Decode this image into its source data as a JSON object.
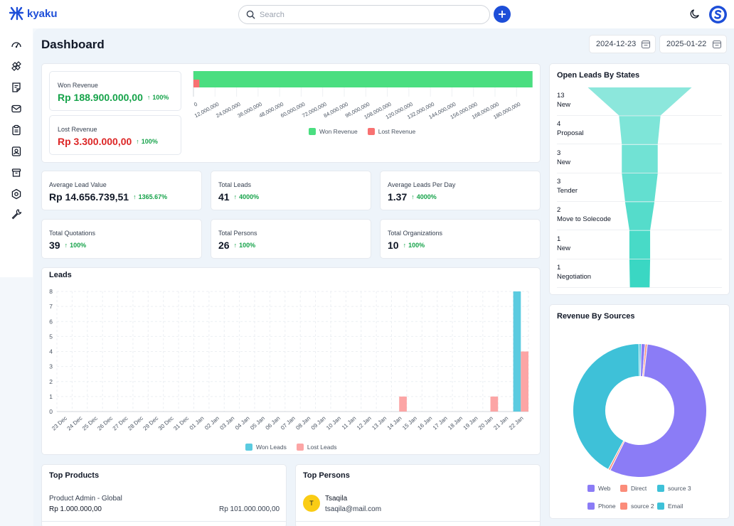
{
  "app": {
    "name": "kyaku"
  },
  "header": {
    "search_placeholder": "Search",
    "avatar_letter": "S"
  },
  "page": {
    "title": "Dashboard",
    "date_from": "2024-12-23",
    "date_to": "2025-01-22"
  },
  "revenue": {
    "won_label": "Won Revenue",
    "won_value": "Rp 188.900.000,00",
    "won_pct": "100%",
    "lost_label": "Lost Revenue",
    "lost_value": "Rp 3.300.000,00",
    "lost_pct": "100%",
    "chart": {
      "type": "bar",
      "orientation": "horizontal",
      "series": [
        {
          "name": "Won Revenue",
          "value": 188900000,
          "color": "#4ade80"
        },
        {
          "name": "Lost Revenue",
          "value": 3300000,
          "color": "#f87171"
        }
      ],
      "xlim": [
        0,
        189000000
      ],
      "ticks": [
        "0",
        "12,000,000",
        "24,000,000",
        "36,000,000",
        "48,000,000",
        "60,000,000",
        "72,000,000",
        "84,000,000",
        "96,000,000",
        "108,000,000",
        "120,000,000",
        "132,000,000",
        "144,000,000",
        "156,000,000",
        "168,000,000",
        "180,000,000"
      ],
      "legend_position": "bottom"
    }
  },
  "stats": [
    {
      "label": "Average Lead Value",
      "value": "Rp 14.656.739,51",
      "pct": "1365.67%"
    },
    {
      "label": "Total Leads",
      "value": "41",
      "pct": "4000%"
    },
    {
      "label": "Average Leads Per Day",
      "value": "1.37",
      "pct": "4000%"
    },
    {
      "label": "Total Quotations",
      "value": "39",
      "pct": "100%"
    },
    {
      "label": "Total Persons",
      "value": "26",
      "pct": "100%"
    },
    {
      "label": "Total Organizations",
      "value": "10",
      "pct": "100%"
    }
  ],
  "leads": {
    "title": "Leads",
    "legend": [
      "Won Leads",
      "Lost Leads"
    ]
  },
  "chart_data": [
    {
      "type": "bar",
      "title": "Leads",
      "categories": [
        "23 Dec",
        "24 Dec",
        "25 Dec",
        "26 Dec",
        "27 Dec",
        "28 Dec",
        "29 Dec",
        "30 Dec",
        "31 Dec",
        "01 Jan",
        "02 Jan",
        "03 Jan",
        "04 Jan",
        "05 Jan",
        "06 Jan",
        "07 Jan",
        "08 Jan",
        "09 Jan",
        "10 Jan",
        "11 Jan",
        "12 Jan",
        "13 Jan",
        "14 Jan",
        "15 Jan",
        "16 Jan",
        "17 Jan",
        "18 Jan",
        "19 Jan",
        "20 Jan",
        "21 Jan",
        "22 Jan"
      ],
      "series": [
        {
          "name": "Won Leads",
          "color": "#5bcbe0",
          "values": [
            0,
            0,
            0,
            0,
            0,
            0,
            0,
            0,
            0,
            0,
            0,
            0,
            0,
            0,
            0,
            0,
            0,
            0,
            0,
            0,
            0,
            0,
            0,
            0,
            0,
            0,
            0,
            0,
            0,
            0,
            8
          ]
        },
        {
          "name": "Lost Leads",
          "color": "#fca5a5",
          "values": [
            0,
            0,
            0,
            0,
            0,
            0,
            0,
            0,
            0,
            0,
            0,
            0,
            0,
            0,
            0,
            0,
            0,
            0,
            0,
            0,
            0,
            0,
            1,
            0,
            0,
            0,
            0,
            0,
            1,
            0,
            4
          ]
        }
      ],
      "ylim": [
        0,
        8
      ],
      "yticks": [
        0,
        1,
        2,
        3,
        4,
        5,
        6,
        7,
        8
      ],
      "grid": true,
      "legend_position": "bottom"
    },
    {
      "type": "pie",
      "title": "Revenue By Sources",
      "donut": true,
      "slices": [
        {
          "name": "Web",
          "value": 1.0,
          "color": "#8b7cf6"
        },
        {
          "name": "Direct",
          "value": 0.5,
          "color": "#fb8c7a"
        },
        {
          "name": "source 3",
          "value": 0.5,
          "color": "#3ec1d8"
        },
        {
          "name": "Phone",
          "value": 55.5,
          "color": "#8b7cf6"
        },
        {
          "name": "source 2",
          "value": 0.5,
          "color": "#fb8c7a"
        },
        {
          "name": "Email",
          "value": 42.0,
          "color": "#3ec1d8"
        }
      ],
      "legend_position": "bottom"
    }
  ],
  "funnel": {
    "title": "Open Leads By States",
    "color": "#2dd4bf",
    "items": [
      {
        "count": "13",
        "label": "New"
      },
      {
        "count": "4",
        "label": "Proposal"
      },
      {
        "count": "3",
        "label": "New"
      },
      {
        "count": "3",
        "label": "Tender"
      },
      {
        "count": "2",
        "label": "Move to Solecode"
      },
      {
        "count": "1",
        "label": "New"
      },
      {
        "count": "1",
        "label": "Negotiation"
      }
    ]
  },
  "sources": {
    "title": "Revenue By Sources",
    "legend": [
      "Web",
      "Direct",
      "source 3",
      "Phone",
      "source 2",
      "Email"
    ]
  },
  "top_products": {
    "title": "Top Products",
    "items": [
      {
        "name": "Product Admin - Global",
        "price": "Rp 1.000.000,00",
        "total": "Rp 101.000.000,00"
      }
    ]
  },
  "top_persons": {
    "title": "Top Persons",
    "items": [
      {
        "initial": "T",
        "name": "Tsaqila",
        "email": "tsaqila@mail.com"
      }
    ]
  }
}
